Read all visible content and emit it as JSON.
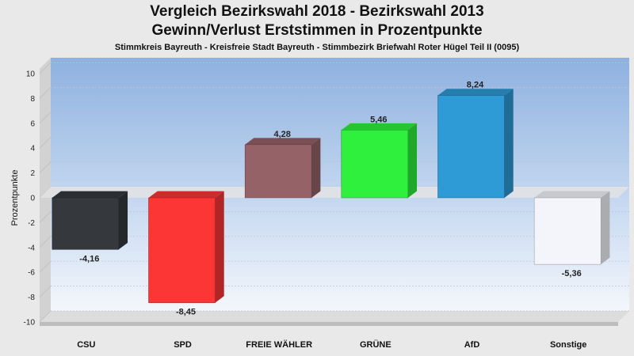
{
  "chart_data": {
    "type": "bar",
    "title": "Vergleich Bezirkswahl 2018 - Bezirkswahl 2013",
    "title2": "Gewinn/Verlust Erststimmen in Prozentpunkte",
    "subtitle": "Stimmkreis Bayreuth - Kreisfreie Stadt Bayreuth - Stimmbezirk Briefwahl Roter Hügel Teil II (0095)",
    "ylabel": "Prozentpunkte",
    "ylim": [
      -10,
      10
    ],
    "yticks": [
      "10",
      "8",
      "6",
      "4",
      "2",
      "0",
      "-2",
      "-4",
      "-6",
      "-8",
      "-10"
    ],
    "grid": true,
    "categories": [
      "CSU",
      "SPD",
      "FREIE WÄHLER",
      "GRÜNE",
      "AfD",
      "Sonstige"
    ],
    "values": [
      -4.16,
      -8.45,
      4.28,
      5.46,
      8.24,
      -5.36
    ],
    "value_labels": [
      "-4,16",
      "-8,45",
      "4,28",
      "5,46",
      "8,24",
      "-5,36"
    ],
    "colors": [
      "#35393d",
      "#fc3535",
      "#956267",
      "#2ff03c",
      "#2e9ad6",
      "#f4f5fb"
    ]
  }
}
